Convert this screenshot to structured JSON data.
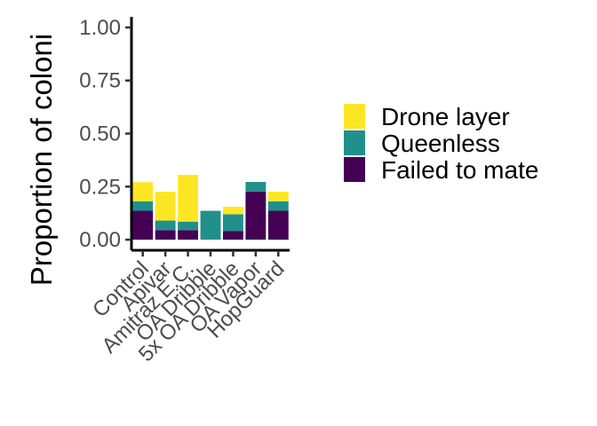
{
  "chart_data": {
    "type": "bar",
    "stacked": true,
    "categories": [
      "Control",
      "Apivar",
      "Amitraz E.C.",
      "OA Dribble",
      "5x OA Dribble",
      "OA Vapor",
      "HopGuard"
    ],
    "series": [
      {
        "name": "Failed to mate",
        "color": "#440154",
        "values": [
          0.136,
          0.045,
          0.045,
          0.0,
          0.04,
          0.227,
          0.136
        ]
      },
      {
        "name": "Queenless",
        "color": "#21908C",
        "values": [
          0.045,
          0.045,
          0.04,
          0.136,
          0.08,
          0.045,
          0.045
        ]
      },
      {
        "name": "Drone layer",
        "color": "#FDE725",
        "values": [
          0.09,
          0.136,
          0.22,
          0.0,
          0.035,
          0.0,
          0.045
        ]
      }
    ],
    "ylabel": "Proportion of coloni",
    "xlabel": "",
    "ylim": [
      -0.05,
      1.05
    ],
    "yticks": [
      "0.00",
      "0.25",
      "0.50",
      "0.75",
      "1.00"
    ],
    "ytick_values": [
      0,
      0.25,
      0.5,
      0.75,
      1.0
    ],
    "grid": false,
    "legend": {
      "position": "right",
      "order": [
        "Drone layer",
        "Queenless",
        "Failed to mate"
      ]
    }
  }
}
